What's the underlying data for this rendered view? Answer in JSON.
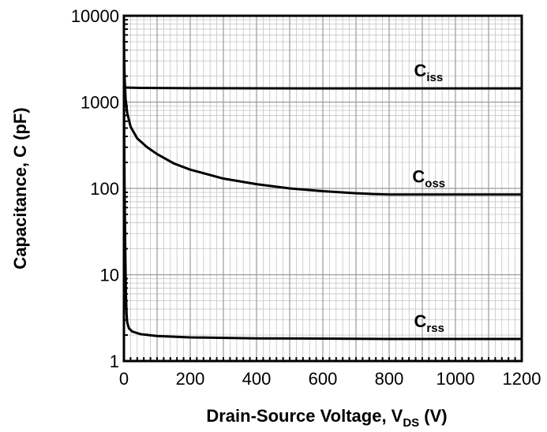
{
  "chart_data": {
    "type": "line",
    "title": "",
    "x_scale": "linear",
    "y_scale": "log",
    "xlim": [
      0,
      1200
    ],
    "ylim": [
      1,
      10000
    ],
    "grid": true,
    "x_ticks": [
      0,
      200,
      400,
      600,
      800,
      1000,
      1200
    ],
    "y_ticks": [
      1,
      10,
      100,
      1000,
      10000
    ],
    "x_tick_labels": [
      "0",
      "200",
      "400",
      "600",
      "800",
      "1000",
      "1200"
    ],
    "y_tick_labels": [
      "1",
      "10",
      "100",
      "1000",
      "10000"
    ],
    "xlabel": {
      "main": "Drain-Source Voltage, V",
      "sub": "DS",
      "suffix": " (V)"
    },
    "ylabel": "Capacitance, C (pF)",
    "series": [
      {
        "name": "Ciss",
        "label_main": "C",
        "label_sub": "iss",
        "color": "#000000",
        "x": [
          0,
          1,
          5,
          10,
          50,
          100,
          200,
          400,
          600,
          800,
          1000,
          1200
        ],
        "y": [
          1500,
          1490,
          1480,
          1470,
          1460,
          1455,
          1450,
          1445,
          1440,
          1440,
          1440,
          1440
        ]
      },
      {
        "name": "Coss",
        "label_main": "C",
        "label_sub": "oss",
        "color": "#000000",
        "x": [
          0,
          1,
          2,
          5,
          10,
          20,
          40,
          70,
          100,
          150,
          200,
          300,
          400,
          500,
          600,
          700,
          750,
          800,
          1000,
          1200
        ],
        "y": [
          6000,
          3000,
          2000,
          1100,
          750,
          520,
          380,
          300,
          250,
          195,
          165,
          130,
          112,
          100,
          93,
          88,
          86,
          85,
          85,
          85
        ]
      },
      {
        "name": "Crss",
        "label_main": "C",
        "label_sub": "rss",
        "color": "#000000",
        "x": [
          0,
          1,
          2,
          4,
          6,
          8,
          10,
          15,
          25,
          50,
          100,
          200,
          400,
          600,
          800,
          1000,
          1200
        ],
        "y": [
          1200,
          400,
          100,
          20,
          6,
          3.5,
          2.8,
          2.4,
          2.2,
          2.05,
          1.95,
          1.88,
          1.83,
          1.82,
          1.8,
          1.8,
          1.8
        ]
      }
    ]
  }
}
